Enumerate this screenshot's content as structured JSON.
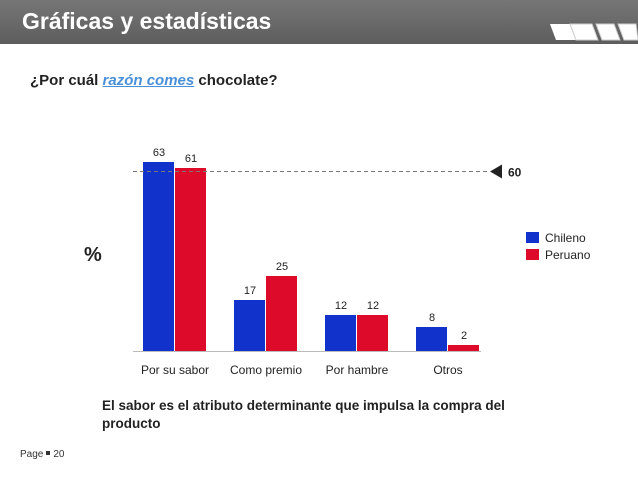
{
  "header": {
    "title": "Gráficas y estadísticas"
  },
  "question": {
    "prefix": "¿Por cuál ",
    "highlight": "razón comes",
    "suffix": " chocolate?"
  },
  "colors": {
    "chileno": "#1133cc",
    "peruano": "#dd0a2a",
    "header": "#666666",
    "highlight": "#4a90d9"
  },
  "chart_data": {
    "type": "bar",
    "title": "¿Por cuál razón comes chocolate?",
    "ylabel": "%",
    "xlabel": "",
    "categories": [
      "Por su sabor",
      "Como premio",
      "Por hambre",
      "Otros"
    ],
    "series": [
      {
        "name": "Chileno",
        "values": [
          63,
          17,
          12,
          8
        ]
      },
      {
        "name": "Peruano",
        "values": [
          61,
          25,
          12,
          2
        ]
      }
    ],
    "ylim": [
      0,
      70
    ],
    "reference_line": {
      "value": 60,
      "label": "60"
    },
    "legend": "right"
  },
  "conclusion": "El sabor es el atributo determinante que impulsa la compra del producto",
  "footer": {
    "page_label": "Page",
    "page_number": "20"
  }
}
